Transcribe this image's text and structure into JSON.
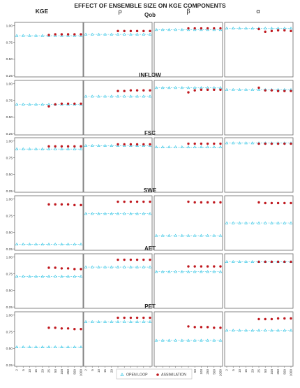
{
  "chart_data": {
    "type": "scatter",
    "title": "EFFECT OF ENSEMBLE SIZE ON KGE COMPONENTS",
    "column_labels": [
      "KGE",
      "ρ",
      "β",
      "α"
    ],
    "row_labels": [
      "Qob",
      "INFLOW",
      "FSC",
      "SWE",
      "AET",
      "PET"
    ],
    "x_categories": [
      "2",
      "5",
      "10",
      "15",
      "20",
      "25",
      "50",
      "100",
      "250",
      "500",
      "1000"
    ],
    "assimilation_start_category": "25",
    "ylim": [
      0.25,
      1.0
    ],
    "yticks": [
      "0.25",
      "0.50",
      "0.75",
      "1.00"
    ],
    "grid": false,
    "legend": {
      "position": "bottom",
      "entries": [
        "OPEN LOOP",
        "ASSIMILATION"
      ]
    },
    "colors": {
      "open_loop": "#3ec8e6",
      "assimilation": "#c0191f",
      "axis": "#666666"
    },
    "panels": [
      {
        "row": "Qob",
        "column": "KGE",
        "open_loop": 0.85,
        "assimilation": [
          0.86,
          0.87,
          0.87,
          0.87,
          0.87,
          0.87
        ]
      },
      {
        "row": "Qob",
        "column": "ρ",
        "open_loop": 0.87,
        "assimilation": [
          0.92,
          0.92,
          0.92,
          0.92,
          0.92,
          0.92
        ]
      },
      {
        "row": "Qob",
        "column": "β",
        "open_loop": 0.94,
        "assimilation": [
          0.96,
          0.96,
          0.96,
          0.96,
          0.96,
          0.96
        ]
      },
      {
        "row": "Qob",
        "column": "α",
        "open_loop": 0.96,
        "assimilation": [
          0.95,
          0.91,
          0.92,
          0.93,
          0.93,
          0.92
        ]
      },
      {
        "row": "INFLOW",
        "column": "KGE",
        "open_loop": 0.69,
        "assimilation": [
          0.66,
          0.69,
          0.7,
          0.7,
          0.7,
          0.7
        ]
      },
      {
        "row": "INFLOW",
        "column": "ρ",
        "open_loop": 0.81,
        "assimilation": [
          0.89,
          0.89,
          0.9,
          0.9,
          0.9,
          0.9
        ]
      },
      {
        "row": "INFLOW",
        "column": "β",
        "open_loop": 0.94,
        "assimilation": [
          0.87,
          0.9,
          0.91,
          0.91,
          0.91,
          0.91
        ]
      },
      {
        "row": "INFLOW",
        "column": "α",
        "open_loop": 0.91,
        "assimilation": [
          0.94,
          0.9,
          0.9,
          0.89,
          0.89,
          0.89
        ]
      },
      {
        "row": "FSC",
        "column": "KGE",
        "open_loop": 0.88,
        "assimilation": [
          0.92,
          0.92,
          0.92,
          0.92,
          0.92,
          0.92
        ]
      },
      {
        "row": "FSC",
        "column": "ρ",
        "open_loop": 0.93,
        "assimilation": [
          0.95,
          0.95,
          0.95,
          0.95,
          0.95,
          0.95
        ]
      },
      {
        "row": "FSC",
        "column": "β",
        "open_loop": 0.91,
        "assimilation": [
          0.96,
          0.96,
          0.96,
          0.96,
          0.96,
          0.96
        ]
      },
      {
        "row": "FSC",
        "column": "α",
        "open_loop": 0.97,
        "assimilation": [
          0.96,
          0.96,
          0.96,
          0.96,
          0.96,
          0.96
        ]
      },
      {
        "row": "SWE",
        "column": "KGE",
        "open_loop": 0.32,
        "assimilation": [
          0.92,
          0.92,
          0.92,
          0.92,
          0.91,
          0.91
        ]
      },
      {
        "row": "SWE",
        "column": "ρ",
        "open_loop": 0.78,
        "assimilation": [
          0.96,
          0.96,
          0.96,
          0.96,
          0.96,
          0.96
        ]
      },
      {
        "row": "SWE",
        "column": "β",
        "open_loop": 0.45,
        "assimilation": [
          0.96,
          0.95,
          0.95,
          0.95,
          0.95,
          0.95
        ]
      },
      {
        "row": "SWE",
        "column": "α",
        "open_loop": 0.64,
        "assimilation": [
          0.95,
          0.94,
          0.94,
          0.94,
          0.94,
          0.94
        ]
      },
      {
        "row": "AET",
        "column": "KGE",
        "open_loop": 0.71,
        "assimilation": [
          0.84,
          0.84,
          0.83,
          0.83,
          0.82,
          0.82
        ]
      },
      {
        "row": "AET",
        "column": "ρ",
        "open_loop": 0.85,
        "assimilation": [
          0.96,
          0.96,
          0.96,
          0.96,
          0.96,
          0.96
        ]
      },
      {
        "row": "AET",
        "column": "β",
        "open_loop": 0.78,
        "assimilation": [
          0.86,
          0.86,
          0.86,
          0.86,
          0.86,
          0.86
        ]
      },
      {
        "row": "AET",
        "column": "α",
        "open_loop": 0.93,
        "assimilation": [
          0.93,
          0.93,
          0.93,
          0.93,
          0.93,
          0.93
        ]
      },
      {
        "row": "PET",
        "column": "KGE",
        "open_loop": 0.52,
        "assimilation": [
          0.81,
          0.81,
          0.8,
          0.8,
          0.79,
          0.79
        ]
      },
      {
        "row": "PET",
        "column": "ρ",
        "open_loop": 0.9,
        "assimilation": [
          0.96,
          0.96,
          0.96,
          0.96,
          0.96,
          0.96
        ]
      },
      {
        "row": "PET",
        "column": "β",
        "open_loop": 0.62,
        "assimilation": [
          0.83,
          0.82,
          0.82,
          0.82,
          0.81,
          0.81
        ]
      },
      {
        "row": "PET",
        "column": "α",
        "open_loop": 0.77,
        "assimilation": [
          0.94,
          0.94,
          0.94,
          0.95,
          0.95,
          0.95
        ]
      }
    ]
  }
}
